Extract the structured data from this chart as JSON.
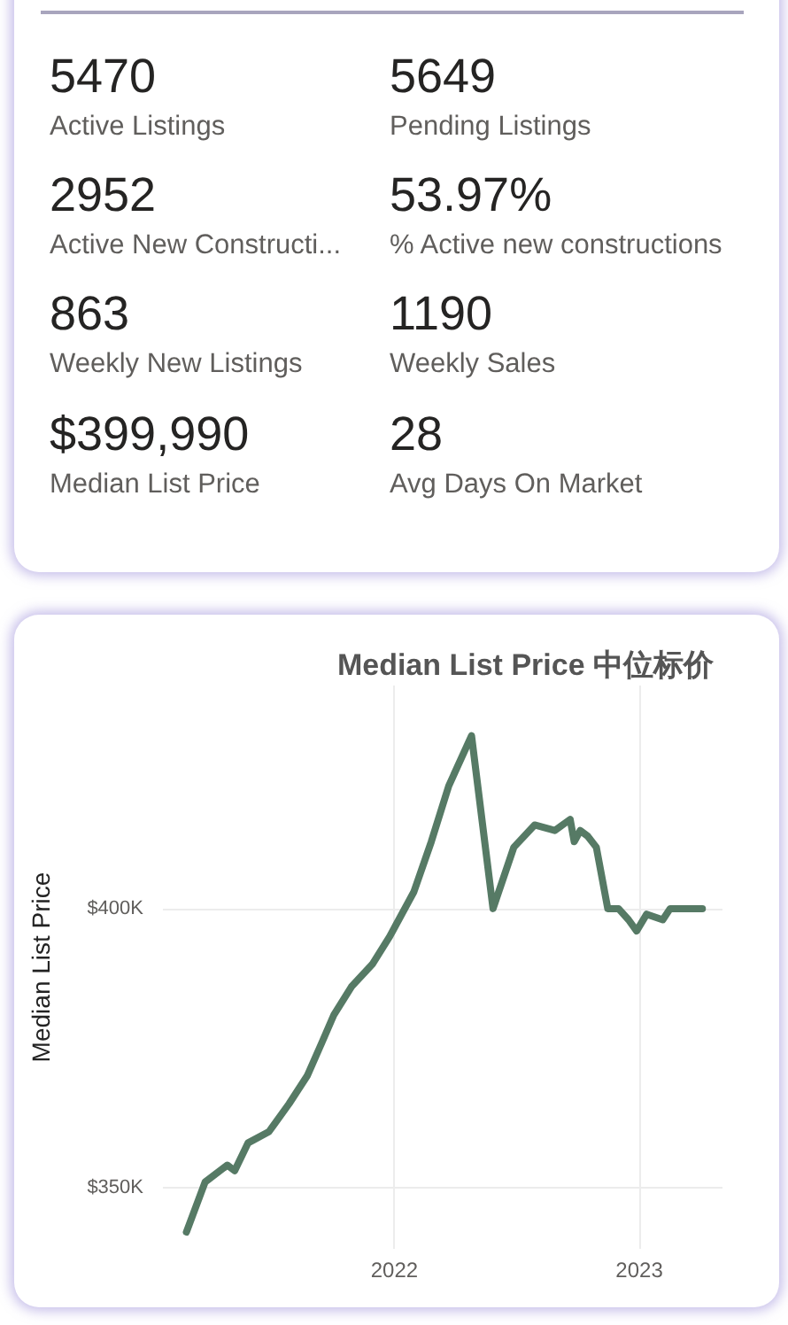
{
  "chart_data": [
    {
      "type": "other",
      "annotations": [
        "5470",
        "Active Listings",
        "5649",
        "Pending Listings",
        "2952",
        "Active New Constructi...",
        "53.97%",
        "% Active new constructions",
        "863",
        "Weekly New Listings",
        "1190",
        "Weekly Sales",
        "$399,990",
        "Median List Price",
        "28",
        "Avg Days On Market"
      ]
    },
    {
      "type": "line",
      "title": "Median List Price 中位标价",
      "ylabel": "Median List Price",
      "x": [
        "2021-02-25",
        "2021-03-25",
        "2021-04-27",
        "2021-05-08",
        "2021-05-28",
        "2021-06-28",
        "2021-07-28",
        "2021-08-24",
        "2021-09-15",
        "2021-10-03",
        "2021-10-29",
        "2021-11-29",
        "2021-12-25",
        "2022-01-03",
        "2022-01-30",
        "2022-02-25",
        "2022-03-23",
        "2022-04-26",
        "2022-05-28",
        "2022-06-28",
        "2022-07-29",
        "2022-08-28",
        "2022-09-20",
        "2022-09-26",
        "2022-10-05",
        "2022-10-16",
        "2022-10-29",
        "2022-11-15",
        "2022-12-01",
        "2022-12-16",
        "2022-12-28",
        "2023-01-12",
        "2023-02-05",
        "2023-02-16",
        "2023-03-05",
        "2023-03-18",
        "2023-04-05"
      ],
      "values": [
        342,
        351,
        354,
        353,
        358,
        360,
        365,
        370,
        376,
        381,
        386,
        390,
        395,
        397,
        403,
        412,
        422,
        431,
        400,
        411,
        415,
        414,
        416,
        412,
        414,
        413,
        411,
        400,
        400,
        398,
        396,
        399,
        398,
        400,
        400,
        400,
        400
      ],
      "color": "#567a65",
      "xlim": [
        "2021-01-21",
        "2023-05-05"
      ],
      "xticks": [
        "2022",
        "2023"
      ],
      "ylim": [
        339,
        440
      ],
      "yticks": [
        {
          "value": 350,
          "label": "$350K"
        },
        {
          "value": 400,
          "label": "$400K"
        }
      ],
      "grid": true,
      "marker": "none",
      "line_style": "solid"
    }
  ]
}
